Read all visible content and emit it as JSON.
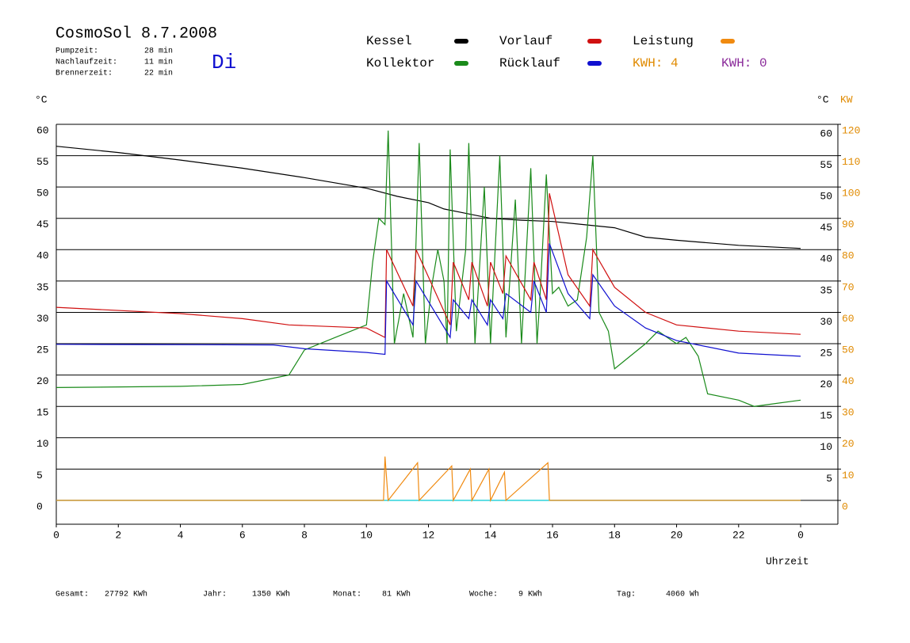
{
  "chart_data": {
    "type": "line",
    "title": "CosmoSol 8.7.2008",
    "info": [
      {
        "label": "Pumpzeit:",
        "value": "28 min"
      },
      {
        "label": "Nachlaufzeit:",
        "value": "11 min"
      },
      {
        "label": "Brennerzeit:",
        "value": "22 min"
      }
    ],
    "weekday": "Di",
    "kwh_labels": [
      {
        "text": "KWH: 4",
        "color": "#e08a00"
      },
      {
        "text": "KWH: 0",
        "color": "#8a2a9a"
      }
    ],
    "y_label": "°C",
    "y_right_label": "°C",
    "y2_label": "KW",
    "x_label": "Uhrzeit",
    "xlim": [
      0,
      25.2
    ],
    "xticks": [
      0,
      2,
      4,
      6,
      8,
      10,
      12,
      14,
      16,
      18,
      20,
      22,
      {
        "value": 24,
        "label": "0"
      }
    ],
    "ylim": [
      -3.8,
      60
    ],
    "yticks": [
      0,
      5,
      10,
      15,
      20,
      25,
      30,
      35,
      40,
      45,
      50,
      55,
      60
    ],
    "y_right_ticks": [
      5,
      10,
      15,
      20,
      25,
      30,
      35,
      40,
      45,
      50,
      55,
      60
    ],
    "y2lim": [
      -7.6,
      120
    ],
    "y2ticks": [
      0,
      10,
      20,
      30,
      40,
      50,
      60,
      70,
      80,
      90,
      100,
      110,
      120
    ],
    "grid": true,
    "series": [
      {
        "name": "Kessel",
        "color": "#000000",
        "x": [
          0,
          2,
          4,
          6,
          8,
          10,
          11,
          12,
          12.5,
          13,
          14,
          15,
          16,
          17,
          18,
          19,
          20,
          22,
          24
        ],
        "values": [
          56.5,
          55.5,
          54.3,
          53,
          51.5,
          49.8,
          48.5,
          47.5,
          46.5,
          46,
          45,
          44.7,
          44.5,
          44,
          43.5,
          42,
          41.5,
          40.7,
          40.2
        ]
      },
      {
        "name": "Kollektor",
        "color": "#1a8a1a",
        "x": [
          0,
          4,
          6,
          7.5,
          8,
          9,
          9.5,
          10,
          10.2,
          10.4,
          10.6,
          10.7,
          10.9,
          11.2,
          11.5,
          11.7,
          11.9,
          12.1,
          12.3,
          12.5,
          12.6,
          12.7,
          12.9,
          13.2,
          13.3,
          13.5,
          13.8,
          14.0,
          14.3,
          14.5,
          14.8,
          15.0,
          15.3,
          15.5,
          15.6,
          15.8,
          16.0,
          16.2,
          16.5,
          16.8,
          17.1,
          17.3,
          17.5,
          17.8,
          18,
          18.5,
          19,
          19.4,
          20,
          20.3,
          20.7,
          21,
          22,
          22.5,
          24
        ],
        "values": [
          18,
          18.2,
          18.5,
          20,
          24,
          26,
          27,
          28,
          38,
          45,
          44,
          59,
          25,
          33,
          26,
          57,
          25,
          34,
          40,
          35,
          25,
          56,
          27,
          40,
          57,
          25,
          50,
          25,
          55,
          26,
          48,
          25,
          53,
          25,
          33,
          52,
          33,
          34,
          31,
          32,
          42,
          55,
          30,
          27,
          21,
          23,
          25,
          27,
          25,
          26,
          23,
          17,
          16,
          15,
          16
        ]
      },
      {
        "name": "Vorlauf",
        "color": "#d01010",
        "x": [
          0,
          4,
          6,
          7.5,
          10,
          10.6,
          10.65,
          11.5,
          11.6,
          12.7,
          12.8,
          13.3,
          13.4,
          13.9,
          14,
          14.4,
          14.5,
          15.3,
          15.4,
          15.8,
          15.9,
          16.5,
          17.2,
          17.3,
          18,
          19,
          20,
          22,
          24
        ],
        "values": [
          30.8,
          29.8,
          29,
          28,
          27.5,
          26,
          40,
          31,
          40,
          28,
          38,
          32,
          38,
          31,
          38,
          33,
          39,
          32,
          38,
          32,
          49,
          36,
          31,
          40,
          34,
          30,
          28,
          27,
          26.5
        ]
      },
      {
        "name": "Rücklauf",
        "color": "#1010d0",
        "x": [
          0,
          7,
          8,
          10,
          10.6,
          10.65,
          11.5,
          11.6,
          12.7,
          12.8,
          13.3,
          13.4,
          13.9,
          14,
          14.4,
          14.5,
          15.3,
          15.4,
          15.8,
          15.9,
          16.5,
          17.2,
          17.3,
          18,
          19,
          20,
          22,
          24
        ],
        "values": [
          24.9,
          24.8,
          24.2,
          23.6,
          23.3,
          35,
          28,
          35,
          26,
          32,
          29,
          32,
          28,
          32,
          29,
          33,
          30,
          35,
          30,
          41,
          33,
          29,
          36,
          31,
          27.5,
          25.5,
          23.5,
          23
        ]
      },
      {
        "name": "Leistung",
        "color": "#f08a10",
        "axis": "y2",
        "x": [
          0,
          10.55,
          10.6,
          10.7,
          11.65,
          11.7,
          12.75,
          12.8,
          13.35,
          13.4,
          13.95,
          14.0,
          14.45,
          14.5,
          15.85,
          15.9,
          24
        ],
        "values": [
          0,
          0,
          14,
          0,
          12,
          0,
          11,
          0,
          10,
          0,
          10,
          0,
          9,
          0,
          12,
          0,
          0
        ]
      }
    ],
    "totals": [
      {
        "label": "Gesamt:",
        "value": "27792 KWh"
      },
      {
        "label": "Jahr:",
        "value": "1350 KWh"
      },
      {
        "label": "Monat:",
        "value": "81 KWh"
      },
      {
        "label": "Woche:",
        "value": "9 KWh"
      },
      {
        "label": "Tag:",
        "value": "4060 Wh"
      }
    ]
  }
}
